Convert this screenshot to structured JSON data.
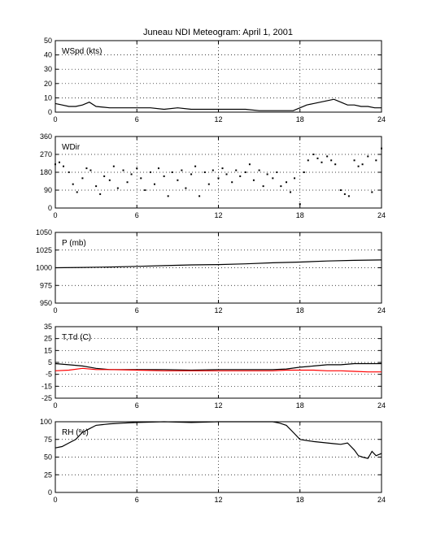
{
  "title": "Juneau NDI Meteogram:      April  1, 2001",
  "chart_data": [
    {
      "type": "line",
      "label": "WSpd (kts)",
      "xlim": [
        0,
        24
      ],
      "xticks": [
        0,
        6,
        12,
        18,
        24
      ],
      "ylim": [
        0,
        50
      ],
      "yticks": [
        0,
        10,
        20,
        30,
        40,
        50
      ],
      "grid": true,
      "series": [
        {
          "color": "#000000",
          "x": [
            0,
            0.5,
            1,
            1.5,
            2,
            2.5,
            3,
            4,
            5,
            6,
            7,
            8,
            9,
            10,
            11,
            12,
            13,
            14,
            15,
            16,
            17,
            17.5,
            18,
            18.5,
            19,
            19.5,
            20,
            20.5,
            21,
            21.5,
            22,
            22.5,
            23,
            23.5,
            24
          ],
          "y": [
            6,
            5,
            4,
            4,
            5,
            7,
            4,
            3,
            3,
            3,
            3,
            2,
            3,
            2,
            2,
            2,
            2,
            2,
            1,
            1,
            1,
            1,
            3,
            5,
            6,
            7,
            8,
            9,
            7,
            5,
            5,
            4,
            4,
            3,
            3
          ]
        }
      ]
    },
    {
      "type": "scatter",
      "label": "WDir",
      "xlim": [
        0,
        24
      ],
      "xticks": [
        0,
        6,
        12,
        18,
        24
      ],
      "ylim": [
        0,
        360
      ],
      "yticks": [
        0,
        90,
        180,
        270,
        360
      ],
      "grid": true,
      "series": [
        {
          "color": "#000000",
          "x": [
            0,
            0.3,
            0.6,
            1,
            1.3,
            1.6,
            2,
            2.3,
            2.6,
            3,
            3.3,
            3.6,
            4,
            4.3,
            4.6,
            5,
            5.3,
            5.6,
            6,
            6.3,
            6.6,
            7,
            7.3,
            7.6,
            8,
            8.3,
            8.6,
            9,
            9.3,
            9.6,
            10,
            10.3,
            10.6,
            11,
            11.3,
            11.6,
            12,
            12.3,
            12.6,
            13,
            13.3,
            13.6,
            14,
            14.3,
            14.6,
            15,
            15.3,
            15.6,
            16,
            16.3,
            16.6,
            17,
            17.3,
            17.6,
            18,
            18.3,
            18.6,
            19,
            19.3,
            19.6,
            20,
            20.3,
            20.6,
            21,
            21.3,
            21.6,
            22,
            22.3,
            22.6,
            23,
            23.3,
            23.6,
            24
          ],
          "y": [
            220,
            230,
            210,
            180,
            120,
            80,
            150,
            200,
            190,
            110,
            70,
            160,
            140,
            210,
            100,
            190,
            130,
            170,
            200,
            150,
            90,
            180,
            120,
            200,
            160,
            60,
            180,
            140,
            190,
            100,
            170,
            210,
            60,
            180,
            120,
            190,
            150,
            200,
            170,
            130,
            190,
            160,
            180,
            220,
            140,
            190,
            110,
            170,
            150,
            180,
            110,
            130,
            80,
            150,
            20,
            180,
            240,
            270,
            250,
            230,
            260,
            240,
            220,
            90,
            70,
            60,
            240,
            210,
            220,
            260,
            80,
            240,
            300
          ]
        }
      ]
    },
    {
      "type": "line",
      "label": "P (mb)",
      "xlim": [
        0,
        24
      ],
      "xticks": [
        0,
        6,
        12,
        18,
        24
      ],
      "ylim": [
        950,
        1050
      ],
      "yticks": [
        950,
        975,
        1000,
        1025,
        1050
      ],
      "grid": true,
      "series": [
        {
          "color": "#000000",
          "x": [
            0,
            2,
            4,
            6,
            8,
            10,
            12,
            14,
            16,
            18,
            20,
            22,
            24
          ],
          "y": [
            1000,
            1000.5,
            1001,
            1002,
            1003,
            1004,
            1004.5,
            1005.5,
            1007,
            1008,
            1009.5,
            1010.5,
            1011
          ]
        }
      ]
    },
    {
      "type": "line",
      "label": "T,Td (C)",
      "xlim": [
        0,
        24
      ],
      "xticks": [
        0,
        6,
        12,
        18,
        24
      ],
      "ylim": [
        -25,
        35
      ],
      "yticks": [
        -25,
        -15,
        -5,
        5,
        15,
        25,
        35
      ],
      "grid": true,
      "series": [
        {
          "color": "#000000",
          "x": [
            0,
            1,
            2,
            3,
            4,
            6,
            8,
            10,
            12,
            14,
            16,
            17,
            18,
            19,
            20,
            21,
            22,
            23,
            24
          ],
          "y": [
            4,
            3,
            2,
            0,
            -1,
            -1,
            -1,
            -1.5,
            -1,
            -1,
            -1,
            -0.5,
            1,
            2,
            3,
            3,
            4,
            4,
            4
          ]
        },
        {
          "color": "#ff0000",
          "x": [
            0,
            1,
            2,
            3,
            4,
            6,
            8,
            10,
            12,
            14,
            16,
            17,
            18,
            19,
            20,
            21,
            22,
            23,
            24
          ],
          "y": [
            -2,
            -1.5,
            0,
            -1,
            -1,
            -1.5,
            -2,
            -2,
            -2,
            -2,
            -2,
            -1.5,
            -1.5,
            -1.5,
            -2,
            -2,
            -2.5,
            -3,
            -3
          ]
        }
      ]
    },
    {
      "type": "line",
      "label": "RH (%)",
      "xlim": [
        0,
        24
      ],
      "xticks": [
        0,
        6,
        12,
        18,
        24
      ],
      "ylim": [
        0,
        100
      ],
      "yticks": [
        0,
        25,
        50,
        75,
        100
      ],
      "grid": true,
      "series": [
        {
          "color": "#000000",
          "x": [
            0,
            0.5,
            1,
            1.5,
            2,
            2.5,
            3,
            3.5,
            4,
            5,
            6,
            8,
            10,
            12,
            14,
            16,
            16.5,
            17,
            17.5,
            18,
            19,
            20,
            20.5,
            21,
            21.5,
            22,
            22.3,
            22.6,
            23,
            23.3,
            23.6,
            24
          ],
          "y": [
            63,
            65,
            70,
            75,
            85,
            90,
            95,
            96,
            97,
            98,
            99,
            100,
            99,
            100,
            100,
            100,
            98,
            95,
            85,
            75,
            72,
            70,
            69,
            68,
            70,
            60,
            52,
            50,
            48,
            58,
            52,
            55
          ]
        }
      ]
    }
  ]
}
